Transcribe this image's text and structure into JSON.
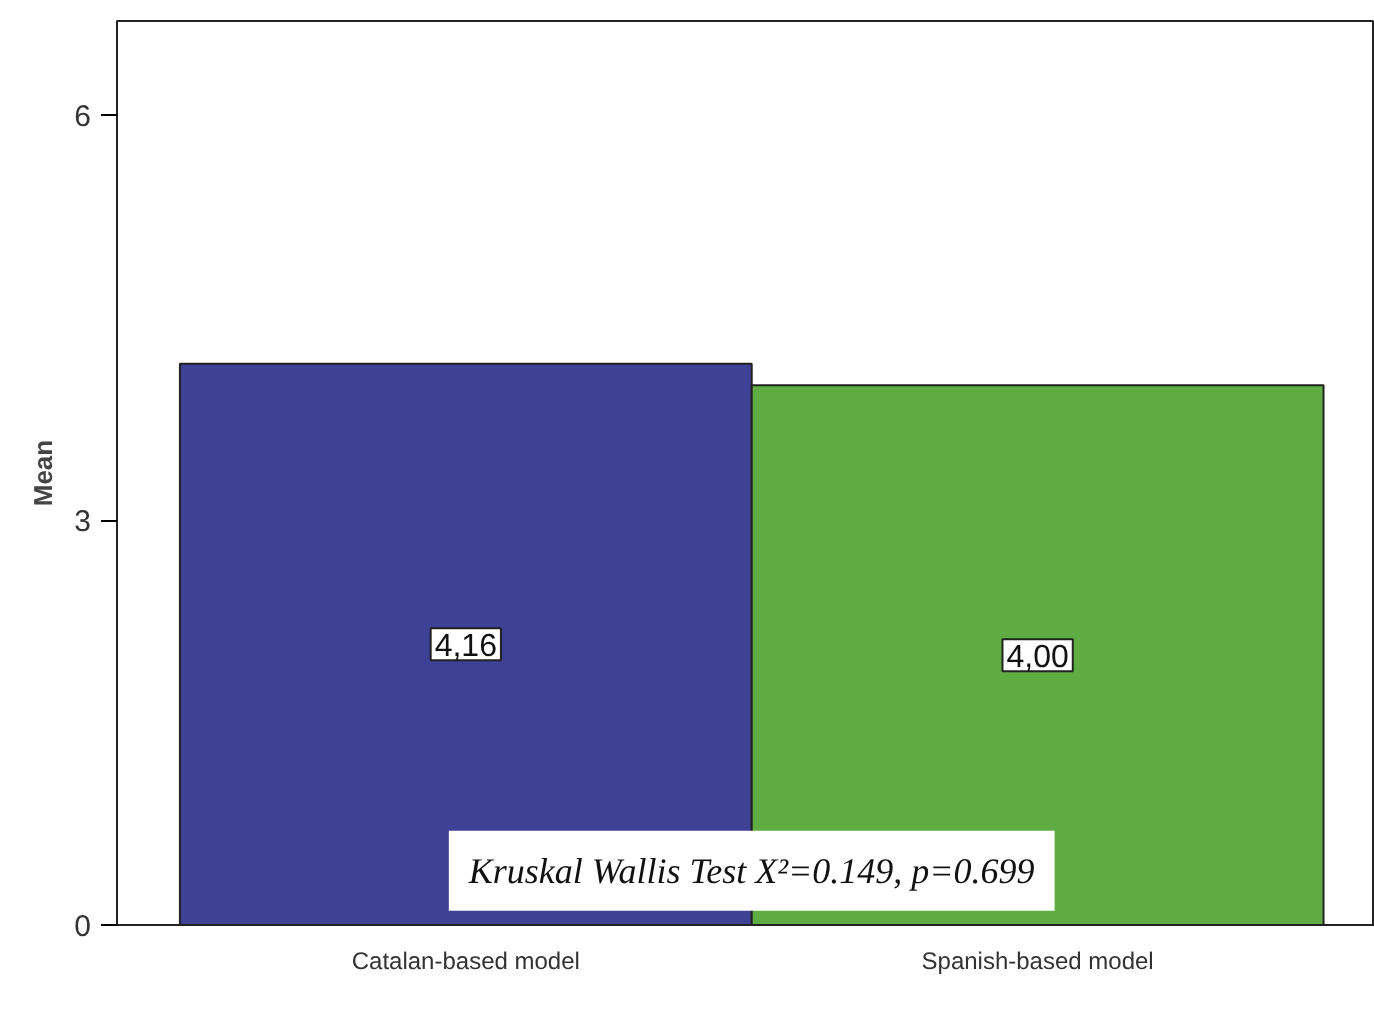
{
  "chart_data": {
    "type": "bar",
    "ylabel": "Mean",
    "categories": [
      "Catalan-based model",
      "Spanish-based model"
    ],
    "values": [
      4.16,
      4.0
    ],
    "colors": [
      "#3f4196",
      "#5fac43"
    ],
    "value_labels": [
      "4,16",
      "4,00"
    ],
    "ylim": [
      0,
      6.7
    ],
    "yticks": [
      0,
      3,
      6
    ],
    "grid": false,
    "annotations": [
      "Kruskal Wallis Test X²=0.149, p=0.699"
    ]
  }
}
